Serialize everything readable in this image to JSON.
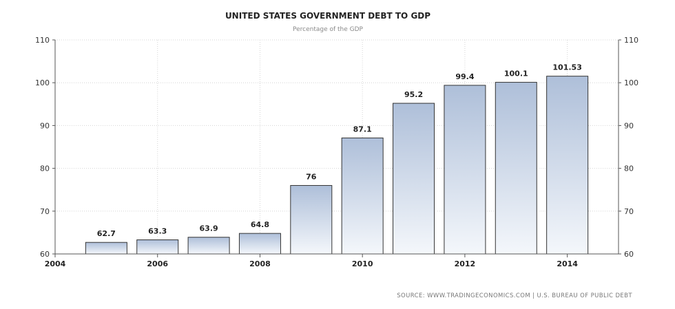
{
  "chart_data": {
    "type": "bar",
    "title": "UNITED STATES GOVERNMENT DEBT TO GDP",
    "subtitle": "Percentage of the GDP",
    "x": [
      2005,
      2006,
      2007,
      2008,
      2009,
      2010,
      2011,
      2012,
      2013,
      2014
    ],
    "values": [
      62.7,
      63.3,
      63.9,
      64.8,
      76,
      87.1,
      95.2,
      99.4,
      100.1,
      101.53
    ],
    "data_labels": [
      "62.7",
      "63.3",
      "63.9",
      "64.8",
      "76",
      "87.1",
      "95.2",
      "99.4",
      "100.1",
      "101.53"
    ],
    "xlim": [
      2004,
      2015
    ],
    "xticks": [
      2004,
      2006,
      2008,
      2010,
      2012,
      2014
    ],
    "ylim": [
      60,
      110
    ],
    "yticks": [
      60,
      70,
      80,
      90,
      100,
      110
    ],
    "xlabel": "",
    "ylabel": "",
    "grid": true,
    "dual_y_axis": true,
    "bar_gradient_top": "#aebfd9",
    "bar_gradient_bottom": "#f4f7fb",
    "bar_border": "#333333"
  },
  "source_text": "SOURCE:  WWW.TRADINGECONOMICS.COM  |  U.S. BUREAU OF PUBLIC DEBT"
}
